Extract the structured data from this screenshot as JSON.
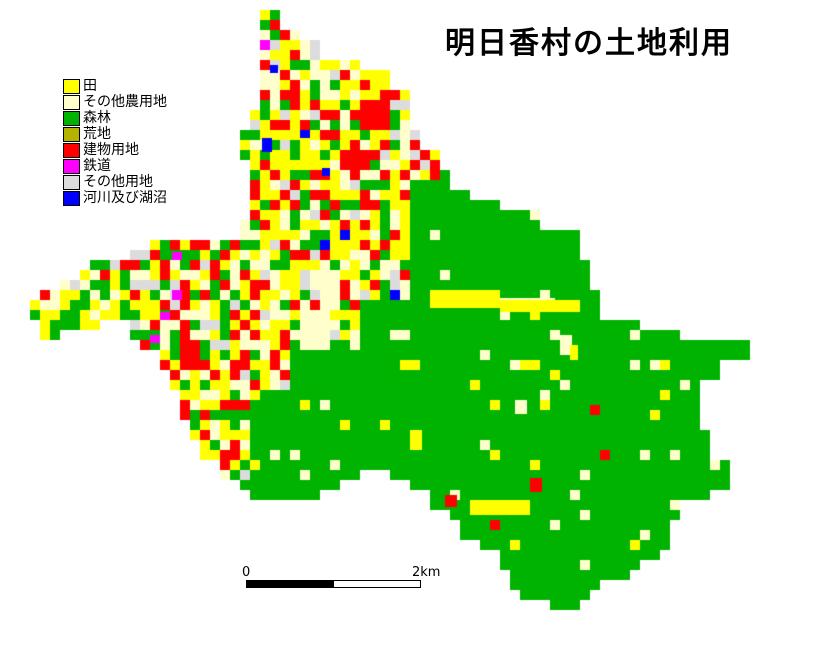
{
  "map": {
    "title": "明日香村の土地利用",
    "legend": [
      {
        "key": "rice",
        "label": "田",
        "color": "#ffff00"
      },
      {
        "key": "farm",
        "label": "その他農用地",
        "color": "#ffffcc"
      },
      {
        "key": "forest",
        "label": "森林",
        "color": "#00b300"
      },
      {
        "key": "waste",
        "label": "荒地",
        "color": "#b3b300"
      },
      {
        "key": "building",
        "label": "建物用地",
        "color": "#ff0000"
      },
      {
        "key": "rail",
        "label": "鉄道",
        "color": "#ff00ff"
      },
      {
        "key": "other",
        "label": "その他用地",
        "color": "#dcdcdc"
      },
      {
        "key": "water",
        "label": "河川及び湖沼",
        "color": "#0000ff"
      }
    ],
    "scale": {
      "start": "0",
      "end": "2km"
    }
  }
}
